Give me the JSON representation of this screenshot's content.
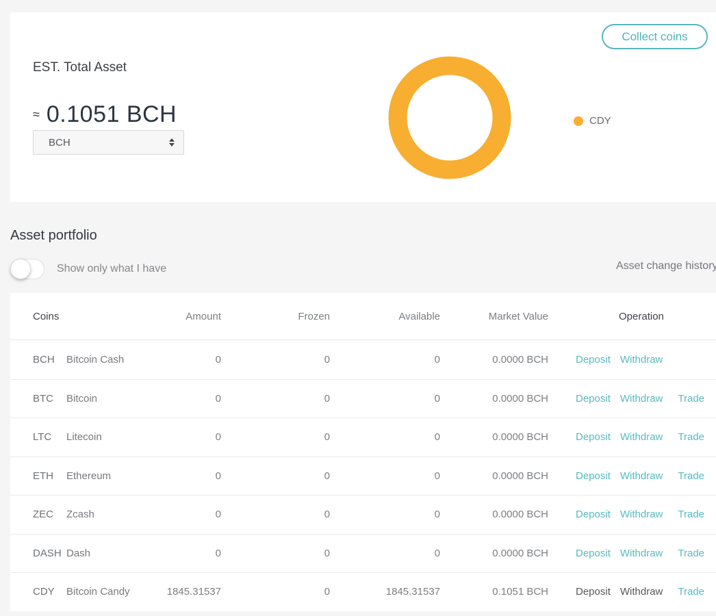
{
  "colors": {
    "accent_teal": "#57bac0",
    "chart_amber": "#f8ae31",
    "page_background": "#f5f5f6"
  },
  "summary": {
    "title": "EST. Total Asset",
    "approx_symbol": "≈",
    "total_value": "0.1051 BCH",
    "currency_select": {
      "value": "BCH"
    },
    "collect_button": "Collect coins"
  },
  "chart_data": {
    "type": "pie",
    "subtype": "donut",
    "labels": [
      "CDY"
    ],
    "values": [
      100
    ],
    "unit": "%",
    "colors": [
      "#f8ae31"
    ],
    "legend_position": "right",
    "note": "Entire holdings (0.1051 BCH equivalent) are in CDY"
  },
  "portfolio": {
    "title": "Asset portfolio",
    "toggle_label": "Show only what I have",
    "toggle_state": "off",
    "history_link": "Asset change history",
    "table": {
      "columns": [
        "Coins",
        "Amount",
        "Frozen",
        "Available",
        "Market Value",
        "Operation"
      ],
      "rows": [
        {
          "symbol": "BCH",
          "name": "Bitcoin Cash",
          "amount": "0",
          "frozen": "0",
          "available": "0",
          "market_value": "0.0000 BCH",
          "operations": [
            {
              "label": "Deposit",
              "style": "link"
            },
            {
              "label": "Withdraw",
              "style": "link"
            }
          ]
        },
        {
          "symbol": "BTC",
          "name": "Bitcoin",
          "amount": "0",
          "frozen": "0",
          "available": "0",
          "market_value": "0.0000 BCH",
          "operations": [
            {
              "label": "Deposit",
              "style": "link"
            },
            {
              "label": "Withdraw",
              "style": "link"
            },
            {
              "label": "Trade",
              "style": "link"
            }
          ]
        },
        {
          "symbol": "LTC",
          "name": "Litecoin",
          "amount": "0",
          "frozen": "0",
          "available": "0",
          "market_value": "0.0000 BCH",
          "operations": [
            {
              "label": "Deposit",
              "style": "link"
            },
            {
              "label": "Withdraw",
              "style": "link"
            },
            {
              "label": "Trade",
              "style": "link"
            }
          ]
        },
        {
          "symbol": "ETH",
          "name": "Ethereum",
          "amount": "0",
          "frozen": "0",
          "available": "0",
          "market_value": "0.0000 BCH",
          "operations": [
            {
              "label": "Deposit",
              "style": "link"
            },
            {
              "label": "Withdraw",
              "style": "link"
            },
            {
              "label": "Trade",
              "style": "link"
            }
          ]
        },
        {
          "symbol": "ZEC",
          "name": "Zcash",
          "amount": "0",
          "frozen": "0",
          "available": "0",
          "market_value": "0.0000 BCH",
          "operations": [
            {
              "label": "Deposit",
              "style": "link"
            },
            {
              "label": "Withdraw",
              "style": "link"
            },
            {
              "label": "Trade",
              "style": "link"
            }
          ]
        },
        {
          "symbol": "DASH",
          "name": "Dash",
          "amount": "0",
          "frozen": "0",
          "available": "0",
          "market_value": "0.0000 BCH",
          "operations": [
            {
              "label": "Deposit",
              "style": "link"
            },
            {
              "label": "Withdraw",
              "style": "link"
            },
            {
              "label": "Trade",
              "style": "link"
            }
          ]
        },
        {
          "symbol": "CDY",
          "name": "Bitcoin Candy",
          "amount": "1845.31537",
          "frozen": "0",
          "available": "1845.31537",
          "market_value": "0.1051 BCH",
          "operations": [
            {
              "label": "Deposit",
              "style": "muted"
            },
            {
              "label": "Withdraw",
              "style": "muted"
            },
            {
              "label": "Trade",
              "style": "link"
            }
          ]
        }
      ]
    }
  }
}
